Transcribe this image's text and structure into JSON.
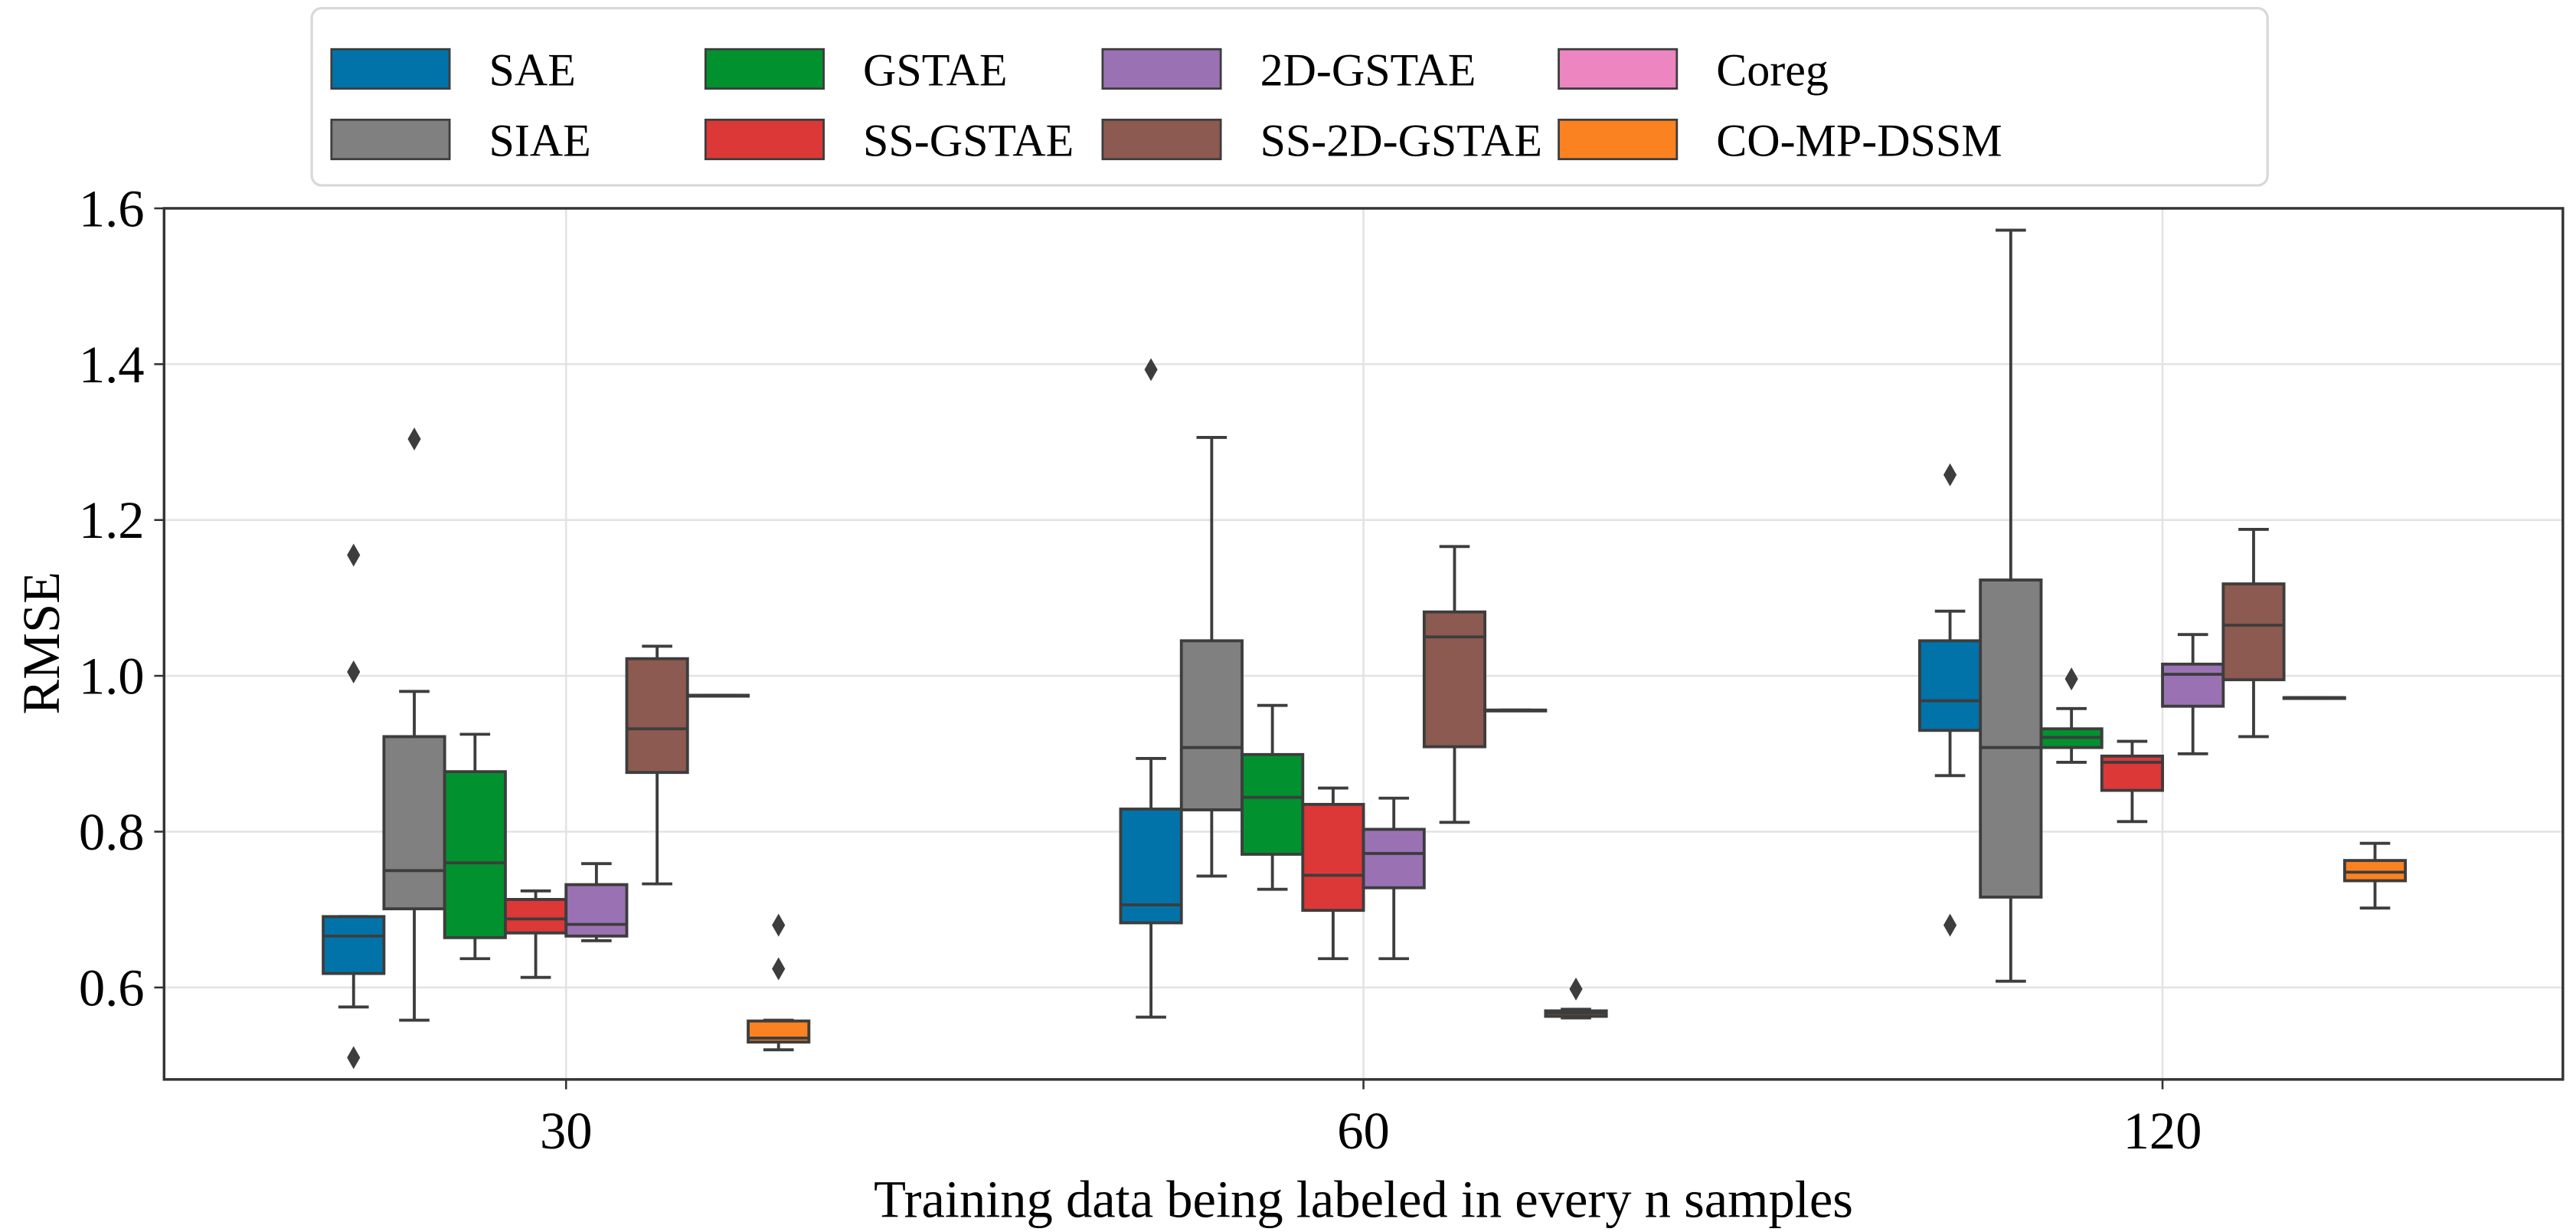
{
  "chart_data": {
    "type": "box",
    "title": "",
    "xlabel": "Training data being labeled in every n samples",
    "ylabel": "RMSE",
    "ylim": [
      0.482,
      1.6
    ],
    "yticks": [
      "0.6",
      "0.8",
      "1.0",
      "1.2",
      "1.4",
      "1.6"
    ],
    "ytick_values": [
      0.6,
      0.8,
      1.0,
      1.2,
      1.4,
      1.6
    ],
    "categories": [
      "30",
      "60",
      "120"
    ],
    "grid": true,
    "legend_position": "top-center",
    "edge_color": "#3d3d3d",
    "series": [
      {
        "name": "SAE",
        "color": "#0273a9",
        "stats": [
          {
            "whislo": 0.575,
            "q1": 0.618,
            "med": 0.666,
            "q3": 0.691,
            "whishi": 0.691,
            "fliers": [
              1.155,
              1.005,
              0.51
            ]
          },
          {
            "whislo": 0.562,
            "q1": 0.683,
            "med": 0.706,
            "q3": 0.829,
            "whishi": 0.894,
            "fliers": [
              1.393
            ]
          },
          {
            "whislo": 0.872,
            "q1": 0.93,
            "med": 0.968,
            "q3": 1.045,
            "whishi": 1.083,
            "fliers": [
              1.258,
              0.68
            ]
          }
        ]
      },
      {
        "name": "SIAE",
        "color": "#808080",
        "stats": [
          {
            "whislo": 0.558,
            "q1": 0.701,
            "med": 0.75,
            "q3": 0.922,
            "whishi": 0.98,
            "fliers": [
              1.304
            ]
          },
          {
            "whislo": 0.743,
            "q1": 0.828,
            "med": 0.908,
            "q3": 1.045,
            "whishi": 1.306,
            "fliers": []
          },
          {
            "whislo": 0.608,
            "q1": 0.716,
            "med": 0.908,
            "q3": 1.123,
            "whishi": 1.572,
            "fliers": []
          }
        ]
      },
      {
        "name": "GSTAE",
        "color": "#01922f",
        "stats": [
          {
            "whislo": 0.637,
            "q1": 0.664,
            "med": 0.76,
            "q3": 0.877,
            "whishi": 0.925,
            "fliers": []
          },
          {
            "whislo": 0.726,
            "q1": 0.771,
            "med": 0.844,
            "q3": 0.899,
            "whishi": 0.962,
            "fliers": []
          },
          {
            "whislo": 0.889,
            "q1": 0.908,
            "med": 0.921,
            "q3": 0.932,
            "whishi": 0.958,
            "fliers": [
              0.996
            ]
          }
        ]
      },
      {
        "name": "SS-GSTAE",
        "color": "#dc3838",
        "stats": [
          {
            "whislo": 0.613,
            "q1": 0.67,
            "med": 0.688,
            "q3": 0.713,
            "whishi": 0.724,
            "fliers": []
          },
          {
            "whislo": 0.637,
            "q1": 0.699,
            "med": 0.744,
            "q3": 0.835,
            "whishi": 0.856,
            "fliers": []
          },
          {
            "whislo": 0.813,
            "q1": 0.853,
            "med": 0.889,
            "q3": 0.897,
            "whishi": 0.916,
            "fliers": []
          }
        ]
      },
      {
        "name": "2D-GSTAE",
        "color": "#9a72b4",
        "stats": [
          {
            "whislo": 0.66,
            "q1": 0.666,
            "med": 0.681,
            "q3": 0.732,
            "whishi": 0.759,
            "fliers": []
          },
          {
            "whislo": 0.637,
            "q1": 0.728,
            "med": 0.772,
            "q3": 0.803,
            "whishi": 0.843,
            "fliers": []
          },
          {
            "whislo": 0.9,
            "q1": 0.961,
            "med": 1.002,
            "q3": 1.015,
            "whishi": 1.053,
            "fliers": []
          }
        ]
      },
      {
        "name": "SS-2D-GSTAE",
        "color": "#8c5a50",
        "stats": [
          {
            "whislo": 0.733,
            "q1": 0.876,
            "med": 0.932,
            "q3": 1.022,
            "whishi": 1.038,
            "fliers": []
          },
          {
            "whislo": 0.812,
            "q1": 0.909,
            "med": 1.05,
            "q3": 1.082,
            "whishi": 1.166,
            "fliers": []
          },
          {
            "whislo": 0.922,
            "q1": 0.995,
            "med": 1.065,
            "q3": 1.118,
            "whishi": 1.188,
            "fliers": []
          }
        ]
      },
      {
        "name": "Coreg",
        "color": "#ec85c0",
        "stats": [
          {
            "whislo": 0.975,
            "q1": 0.975,
            "med": 0.975,
            "q3": 0.975,
            "whishi": 0.975,
            "fliers": []
          },
          {
            "whislo": 0.956,
            "q1": 0.956,
            "med": 0.956,
            "q3": 0.956,
            "whishi": 0.956,
            "fliers": []
          },
          {
            "whislo": 0.972,
            "q1": 0.972,
            "med": 0.972,
            "q3": 0.972,
            "whishi": 0.972,
            "fliers": []
          }
        ]
      },
      {
        "name": "CO-MP-DSSM",
        "color": "#fb8220",
        "stats": [
          {
            "whislo": 0.52,
            "q1": 0.53,
            "med": 0.535,
            "q3": 0.557,
            "whishi": 0.558,
            "fliers": [
              0.68,
              0.624
            ]
          },
          {
            "whislo": 0.561,
            "q1": 0.563,
            "med": 0.567,
            "q3": 0.57,
            "whishi": 0.572,
            "fliers": [
              0.598
            ]
          },
          {
            "whislo": 0.702,
            "q1": 0.737,
            "med": 0.748,
            "q3": 0.763,
            "whishi": 0.785,
            "fliers": []
          }
        ]
      }
    ]
  }
}
